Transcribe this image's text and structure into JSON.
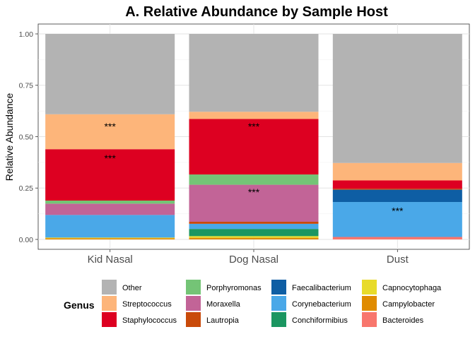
{
  "chart_data": {
    "type": "bar",
    "stacked": true,
    "title": "A. Relative Abundance by Sample Host",
    "xlabel": "",
    "ylabel": "Relative Abundance",
    "ylim": [
      0,
      1.0
    ],
    "yticks": [
      "0.00",
      "0.25",
      "0.50",
      "0.75",
      "1.00"
    ],
    "grid": true,
    "legend_position": "bottom",
    "legend_title": "Genus",
    "categories": [
      "Kid Nasal",
      "Dog Nasal",
      "Dust"
    ],
    "series": [
      {
        "name": "Bacteroides",
        "color": "#F8766D",
        "values": [
          0.0,
          0.0,
          0.012
        ]
      },
      {
        "name": "Campylobacter",
        "color": "#E08B00",
        "values": [
          0.006,
          0.008,
          0.0
        ]
      },
      {
        "name": "Capnocytophaga",
        "color": "#E8DB2A",
        "values": [
          0.003,
          0.008,
          0.0
        ]
      },
      {
        "name": "Conchiformibius",
        "color": "#1B9661",
        "values": [
          0.0,
          0.035,
          0.0
        ]
      },
      {
        "name": "Corynebacterium",
        "color": "#4AA8E8",
        "values": [
          0.11,
          0.025,
          0.17
        ]
      },
      {
        "name": "Faecalibacterium",
        "color": "#0E5EA4",
        "values": [
          0.0,
          0.0,
          0.06
        ]
      },
      {
        "name": "Lautropia",
        "color": "#C94A0A",
        "values": [
          0.0,
          0.01,
          0.005
        ]
      },
      {
        "name": "Moraxella",
        "color": "#C26497",
        "values": [
          0.055,
          0.18,
          0.0
        ]
      },
      {
        "name": "Porphyromonas",
        "color": "#74C476",
        "values": [
          0.015,
          0.05,
          0.0
        ]
      },
      {
        "name": "Staphylococcus",
        "color": "#DD0021",
        "values": [
          0.25,
          0.27,
          0.04
        ]
      },
      {
        "name": "Streptococcus",
        "color": "#FDB57A",
        "values": [
          0.17,
          0.035,
          0.085
        ]
      },
      {
        "name": "Other",
        "color": "#B3B3B3",
        "values": [
          0.391,
          0.379,
          0.628
        ]
      }
    ],
    "annotations": [
      {
        "category": "Kid Nasal",
        "y": 0.56,
        "text": "***"
      },
      {
        "category": "Kid Nasal",
        "y": 0.405,
        "text": "***"
      },
      {
        "category": "Dog Nasal",
        "y": 0.56,
        "text": "***"
      },
      {
        "category": "Dog Nasal",
        "y": 0.24,
        "text": "***"
      },
      {
        "category": "Dust",
        "y": 0.15,
        "text": "***"
      }
    ],
    "legend_order": [
      "Other",
      "Streptococcus",
      "Staphylococcus",
      "Porphyromonas",
      "Moraxella",
      "Lautropia",
      "Faecalibacterium",
      "Corynebacterium",
      "Conchiformibius",
      "Capnocytophaga",
      "Campylobacter",
      "Bacteroides"
    ]
  }
}
